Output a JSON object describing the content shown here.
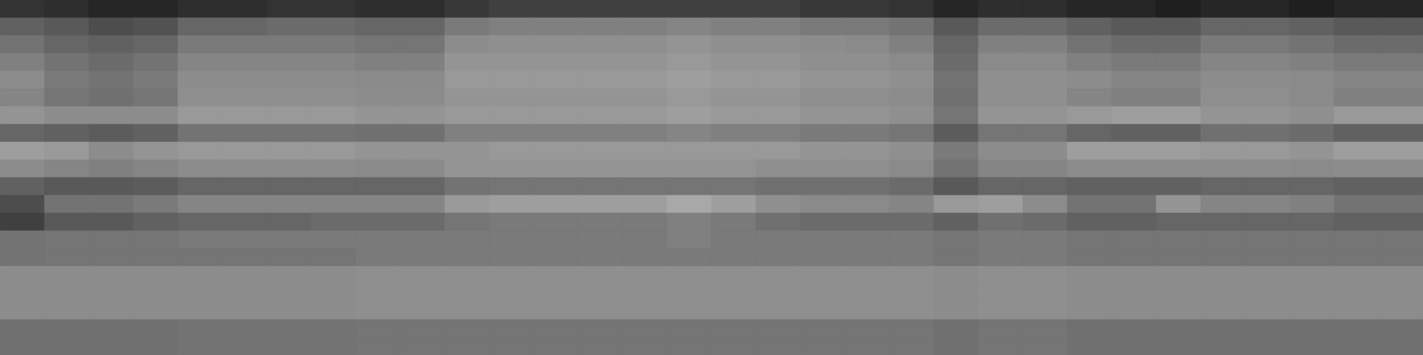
{
  "chart_data": {
    "type": "heatmap",
    "tick_labels": false,
    "zlim": [
      0,
      100
    ],
    "cells": [
      [
        20,
        18,
        15,
        15,
        18,
        18,
        20,
        20,
        18,
        18,
        22,
        25,
        25,
        25,
        25,
        25,
        25,
        25,
        22,
        22,
        20,
        15,
        18,
        18,
        15,
        15,
        12,
        15,
        15,
        12,
        15,
        15
      ],
      [
        38,
        35,
        30,
        32,
        40,
        40,
        42,
        42,
        40,
        40,
        48,
        50,
        50,
        50,
        50,
        52,
        50,
        50,
        48,
        48,
        45,
        35,
        42,
        42,
        38,
        35,
        35,
        40,
        40,
        38,
        35,
        35
      ],
      [
        45,
        40,
        38,
        40,
        48,
        48,
        48,
        48,
        46,
        46,
        55,
        56,
        56,
        56,
        56,
        58,
        56,
        56,
        55,
        54,
        50,
        40,
        50,
        50,
        45,
        42,
        42,
        48,
        48,
        45,
        42,
        42
      ],
      [
        50,
        45,
        42,
        45,
        52,
        52,
        52,
        52,
        50,
        50,
        58,
        58,
        58,
        58,
        58,
        60,
        58,
        58,
        56,
        56,
        54,
        42,
        54,
        54,
        50,
        48,
        48,
        52,
        52,
        50,
        48,
        48
      ],
      [
        55,
        48,
        45,
        48,
        55,
        55,
        55,
        55,
        54,
        54,
        60,
        60,
        60,
        60,
        60,
        62,
        60,
        60,
        58,
        58,
        56,
        45,
        56,
        56,
        55,
        52,
        52,
        55,
        55,
        54,
        52,
        52
      ],
      [
        52,
        46,
        44,
        46,
        56,
        56,
        56,
        56,
        55,
        55,
        58,
        58,
        58,
        58,
        58,
        60,
        58,
        58,
        56,
        56,
        55,
        44,
        56,
        56,
        52,
        50,
        50,
        56,
        56,
        54,
        50,
        50
      ],
      [
        58,
        55,
        55,
        55,
        60,
        60,
        60,
        60,
        58,
        58,
        60,
        60,
        60,
        60,
        60,
        62,
        60,
        60,
        58,
        58,
        56,
        46,
        58,
        58,
        60,
        62,
        62,
        58,
        58,
        56,
        60,
        60
      ],
      [
        40,
        38,
        36,
        38,
        45,
        45,
        45,
        45,
        44,
        44,
        50,
        50,
        50,
        50,
        50,
        52,
        50,
        50,
        48,
        48,
        46,
        36,
        46,
        46,
        40,
        38,
        38,
        44,
        44,
        42,
        38,
        38
      ],
      [
        62,
        60,
        55,
        58,
        60,
        60,
        60,
        60,
        58,
        58,
        58,
        60,
        60,
        60,
        60,
        60,
        60,
        60,
        58,
        58,
        56,
        48,
        55,
        55,
        62,
        62,
        62,
        60,
        60,
        58,
        62,
        62
      ],
      [
        55,
        52,
        50,
        52,
        55,
        55,
        55,
        55,
        54,
        54,
        58,
        58,
        58,
        58,
        58,
        58,
        58,
        56,
        56,
        56,
        54,
        45,
        52,
        52,
        55,
        55,
        55,
        55,
        55,
        54,
        55,
        55
      ],
      [
        38,
        35,
        35,
        36,
        40,
        40,
        40,
        40,
        40,
        40,
        45,
        46,
        46,
        46,
        46,
        46,
        46,
        44,
        44,
        44,
        42,
        35,
        40,
        40,
        38,
        38,
        38,
        40,
        40,
        40,
        38,
        38
      ],
      [
        30,
        45,
        45,
        48,
        52,
        52,
        52,
        52,
        52,
        52,
        60,
        62,
        62,
        62,
        62,
        66,
        62,
        56,
        54,
        54,
        52,
        60,
        62,
        55,
        45,
        45,
        58,
        52,
        52,
        50,
        45,
        45
      ],
      [
        25,
        35,
        35,
        38,
        40,
        40,
        40,
        42,
        42,
        42,
        46,
        48,
        48,
        48,
        48,
        50,
        48,
        44,
        42,
        42,
        42,
        38,
        44,
        42,
        38,
        38,
        40,
        40,
        40,
        40,
        38,
        38
      ],
      [
        45,
        46,
        46,
        46,
        48,
        48,
        48,
        48,
        48,
        48,
        48,
        48,
        48,
        48,
        48,
        50,
        48,
        48,
        48,
        48,
        48,
        46,
        48,
        48,
        46,
        46,
        46,
        46,
        46,
        46,
        46,
        46
      ],
      [
        45,
        46,
        46,
        46,
        46,
        46,
        46,
        46,
        48,
        48,
        48,
        48,
        48,
        48,
        48,
        48,
        48,
        48,
        48,
        48,
        48,
        46,
        48,
        48,
        46,
        46,
        46,
        46,
        46,
        46,
        46,
        46
      ],
      [
        55,
        55,
        55,
        55,
        55,
        55,
        55,
        55,
        56,
        56,
        56,
        56,
        56,
        56,
        56,
        56,
        56,
        56,
        56,
        56,
        56,
        55,
        56,
        56,
        55,
        55,
        55,
        55,
        55,
        55,
        55,
        55
      ],
      [
        55,
        55,
        55,
        55,
        55,
        55,
        55,
        55,
        56,
        56,
        56,
        56,
        56,
        56,
        56,
        56,
        56,
        56,
        56,
        56,
        56,
        55,
        56,
        56,
        55,
        55,
        55,
        55,
        55,
        55,
        55,
        55
      ],
      [
        55,
        55,
        55,
        55,
        55,
        55,
        55,
        55,
        56,
        56,
        56,
        56,
        56,
        56,
        56,
        56,
        56,
        56,
        56,
        56,
        56,
        55,
        56,
        56,
        55,
        55,
        55,
        55,
        55,
        55,
        55,
        55
      ],
      [
        44,
        44,
        44,
        44,
        45,
        45,
        45,
        45,
        46,
        46,
        46,
        46,
        46,
        46,
        46,
        46,
        46,
        46,
        46,
        46,
        46,
        44,
        46,
        46,
        44,
        44,
        44,
        44,
        44,
        44,
        44,
        44
      ],
      [
        44,
        44,
        44,
        44,
        45,
        45,
        45,
        45,
        46,
        46,
        46,
        46,
        46,
        46,
        46,
        46,
        46,
        46,
        46,
        46,
        46,
        44,
        46,
        46,
        44,
        44,
        44,
        44,
        44,
        44,
        44,
        44
      ]
    ]
  }
}
